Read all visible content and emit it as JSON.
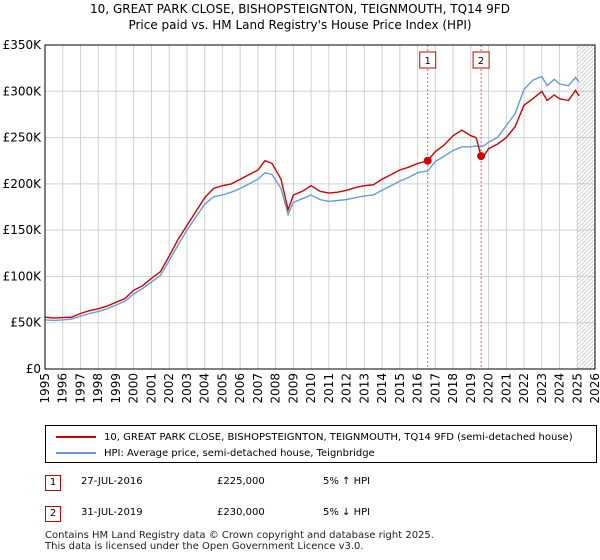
{
  "chart_data": {
    "type": "line",
    "title": "10, GREAT PARK CLOSE, BISHOPSTEIGNTON, TEIGNMOUTH, TQ14 9FD",
    "subtitle": "Price paid vs. HM Land Registry's House Price Index (HPI)",
    "xlabel": "",
    "ylabel": "",
    "xlim": [
      1995,
      2026
    ],
    "ylim": [
      0,
      350000
    ],
    "x_ticks": [
      1995,
      1996,
      1997,
      1998,
      1999,
      2000,
      2001,
      2002,
      2003,
      2004,
      2005,
      2006,
      2007,
      2008,
      2009,
      2010,
      2011,
      2012,
      2013,
      2014,
      2015,
      2016,
      2017,
      2018,
      2019,
      2020,
      2021,
      2022,
      2023,
      2024,
      2025,
      2026
    ],
    "y_ticks": [
      {
        "value": 0,
        "label": "£0"
      },
      {
        "value": 50000,
        "label": "£50K"
      },
      {
        "value": 100000,
        "label": "£100K"
      },
      {
        "value": 150000,
        "label": "£150K"
      },
      {
        "value": 200000,
        "label": "£200K"
      },
      {
        "value": 250000,
        "label": "£250K"
      },
      {
        "value": 300000,
        "label": "£300K"
      },
      {
        "value": 350000,
        "label": "£350K"
      }
    ],
    "grid": true,
    "series": [
      {
        "name": "10, GREAT PARK CLOSE, BISHOPSTEIGNTON, TEIGNMOUTH, TQ14 9FD (semi-detached house)",
        "color": "#cc0000",
        "x": [
          1995.0,
          1995.5,
          1996.0,
          1996.5,
          1997.0,
          1997.5,
          1998.0,
          1998.5,
          1999.0,
          1999.5,
          2000.0,
          2000.5,
          2001.0,
          2001.5,
          2002.0,
          2002.5,
          2003.0,
          2003.5,
          2004.0,
          2004.5,
          2005.0,
          2005.5,
          2006.0,
          2006.5,
          2007.0,
          2007.4,
          2007.8,
          2008.3,
          2008.7,
          2009.0,
          2009.5,
          2010.0,
          2010.5,
          2011.0,
          2011.5,
          2012.0,
          2012.5,
          2013.0,
          2013.5,
          2014.0,
          2014.5,
          2015.0,
          2015.5,
          2016.0,
          2016.57,
          2017.0,
          2017.5,
          2018.0,
          2018.5,
          2019.0,
          2019.3,
          2019.58,
          2019.8,
          2020.0,
          2020.5,
          2021.0,
          2021.5,
          2022.0,
          2022.5,
          2023.0,
          2023.3,
          2023.7,
          2024.0,
          2024.5,
          2024.9,
          2025.1
        ],
        "y": [
          56000,
          55000,
          55500,
          56000,
          60000,
          63000,
          65000,
          68000,
          72000,
          76000,
          85000,
          90000,
          98000,
          105000,
          122000,
          140000,
          155000,
          170000,
          185000,
          195000,
          198000,
          200000,
          205000,
          210000,
          215000,
          225000,
          222000,
          205000,
          172000,
          188000,
          192000,
          198000,
          192000,
          190000,
          191000,
          193000,
          196000,
          198000,
          199000,
          205000,
          210000,
          215000,
          218000,
          222000,
          225000,
          235000,
          242000,
          252000,
          258000,
          252000,
          250000,
          230000,
          232000,
          238000,
          243000,
          250000,
          262000,
          285000,
          292000,
          300000,
          290000,
          296000,
          292000,
          290000,
          301000,
          295000
        ]
      },
      {
        "name": "HPI: Average price, semi-detached house, Teignbridge",
        "color": "#6a9bd8",
        "x": [
          1995.0,
          1995.5,
          1996.0,
          1996.5,
          1997.0,
          1997.5,
          1998.0,
          1998.5,
          1999.0,
          1999.5,
          2000.0,
          2000.5,
          2001.0,
          2001.5,
          2002.0,
          2002.5,
          2003.0,
          2003.5,
          2004.0,
          2004.5,
          2005.0,
          2005.5,
          2006.0,
          2006.5,
          2007.0,
          2007.4,
          2007.8,
          2008.3,
          2008.7,
          2009.0,
          2009.5,
          2010.0,
          2010.5,
          2011.0,
          2011.5,
          2012.0,
          2012.5,
          2013.0,
          2013.5,
          2014.0,
          2014.5,
          2015.0,
          2015.5,
          2016.0,
          2016.57,
          2017.0,
          2017.5,
          2018.0,
          2018.5,
          2019.0,
          2019.3,
          2019.58,
          2019.8,
          2020.0,
          2020.5,
          2021.0,
          2021.5,
          2022.0,
          2022.5,
          2023.0,
          2023.3,
          2023.7,
          2024.0,
          2024.5,
          2024.9,
          2025.1
        ],
        "y": [
          53000,
          52500,
          53000,
          54000,
          57000,
          60000,
          62000,
          65000,
          69000,
          73000,
          81000,
          87000,
          94000,
          101000,
          117000,
          134000,
          150000,
          164000,
          178000,
          186000,
          188000,
          191000,
          195000,
          200000,
          205000,
          212000,
          210000,
          195000,
          167000,
          180000,
          184000,
          188000,
          183000,
          181000,
          182000,
          183000,
          185000,
          187000,
          188000,
          193000,
          198000,
          203000,
          207000,
          212000,
          214000,
          224000,
          230000,
          236000,
          240000,
          240000,
          241000,
          240000,
          242000,
          245000,
          250000,
          263000,
          276000,
          302000,
          312000,
          316000,
          306000,
          313000,
          308000,
          306000,
          315000,
          310000
        ]
      }
    ],
    "sales": [
      {
        "label": "1",
        "x": 2016.57,
        "y": 225000
      },
      {
        "label": "2",
        "x": 2019.58,
        "y": 230000
      }
    ],
    "annotations": [
      "1",
      "2"
    ],
    "hatch_start": 2025.0
  },
  "legend": {
    "property_label": "10, GREAT PARK CLOSE, BISHOPSTEIGNTON, TEIGNMOUTH, TQ14 9FD (semi-detached house)",
    "hpi_label": "HPI: Average price, semi-detached house, Teignbridge",
    "property_color": "#cc0000",
    "hpi_color": "#6a9bd8"
  },
  "sales_table": [
    {
      "num": "1",
      "date": "27-JUL-2016",
      "price": "£225,000",
      "hpi": "5% ↑ HPI"
    },
    {
      "num": "2",
      "date": "31-JUL-2019",
      "price": "£230,000",
      "hpi": "5% ↓ HPI"
    }
  ],
  "footer": {
    "line1": "Contains HM Land Registry data © Crown copyright and database right 2025.",
    "line2": "This data is licensed under the Open Government Licence v3.0."
  }
}
